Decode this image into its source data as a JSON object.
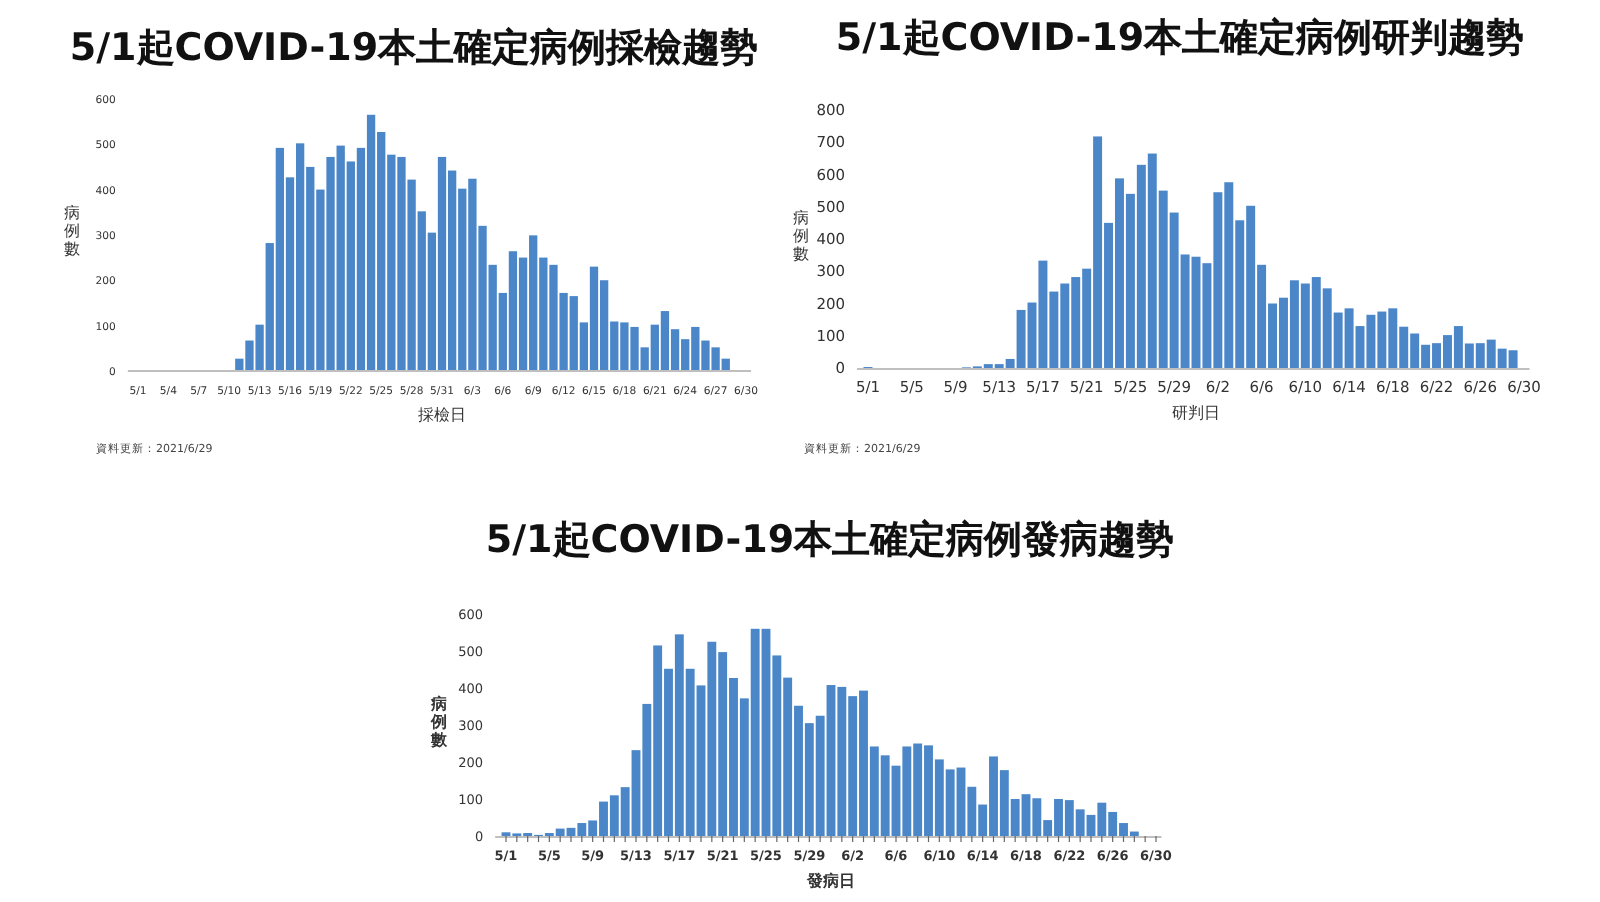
{
  "chart_data": [
    {
      "type": "bar",
      "title": "5/1起COVID-19本土確定病例採檢趨勢",
      "xlabel": "採檢日",
      "ylabel": "病例數",
      "color": "#4a86c8",
      "ylim": [
        0,
        600
      ],
      "yticks": [
        0,
        100,
        200,
        300,
        400,
        500,
        600
      ],
      "annotations": [
        "資料更新：2021/6/29"
      ],
      "categories": [
        "5/1",
        null,
        null,
        "5/4",
        null,
        null,
        "5/7",
        null,
        null,
        "5/10",
        null,
        null,
        "5/13",
        null,
        null,
        "5/16",
        null,
        null,
        "5/19",
        null,
        null,
        "5/22",
        null,
        null,
        "5/25",
        null,
        null,
        "5/28",
        null,
        null,
        "5/31",
        null,
        null,
        "6/3",
        null,
        null,
        "6/6",
        null,
        null,
        "6/9",
        null,
        null,
        "6/12",
        null,
        null,
        "6/15",
        null,
        null,
        "6/18",
        null,
        null,
        "6/21",
        null,
        null,
        "6/24",
        null,
        null,
        "6/27",
        null,
        null,
        "6/30"
      ],
      "values": [
        0,
        0,
        0,
        0,
        0,
        0,
        0,
        0,
        0,
        0,
        25,
        65,
        100,
        280,
        490,
        425,
        500,
        448,
        398,
        470,
        495,
        460,
        490,
        563,
        525,
        475,
        470,
        420,
        350,
        303,
        470,
        440,
        400,
        422,
        318,
        232,
        170,
        262,
        248,
        297,
        248,
        232,
        170,
        163,
        105,
        228,
        198,
        107,
        105,
        95,
        50,
        100,
        130,
        90,
        68,
        95,
        65,
        50,
        25,
        0,
        0
      ]
    },
    {
      "type": "bar",
      "title": "5/1起COVID-19本土確定病例研判趨勢",
      "xlabel": "研判日",
      "ylabel": "病例數",
      "color": "#4a86c8",
      "ylim": [
        0,
        800
      ],
      "yticks": [
        0,
        100,
        200,
        300,
        400,
        500,
        600,
        700,
        800
      ],
      "annotations": [
        "資料更新：2021/6/29"
      ],
      "categories": [
        "5/1",
        null,
        null,
        null,
        "5/5",
        null,
        null,
        null,
        "5/9",
        null,
        null,
        null,
        "5/13",
        null,
        null,
        null,
        "5/17",
        null,
        null,
        null,
        "5/21",
        null,
        null,
        null,
        "5/25",
        null,
        null,
        null,
        "5/29",
        null,
        null,
        null,
        "6/2",
        null,
        null,
        null,
        "6/6",
        null,
        null,
        null,
        "6/10",
        null,
        null,
        null,
        "6/14",
        null,
        null,
        null,
        "6/18",
        null,
        null,
        null,
        "6/22",
        null,
        null,
        null,
        "6/26",
        null,
        null,
        null,
        "6/30"
      ],
      "values": [
        3,
        0,
        0,
        0,
        0,
        0,
        0,
        0,
        0,
        2,
        5,
        12,
        12,
        28,
        180,
        203,
        333,
        237,
        262,
        282,
        308,
        718,
        450,
        588,
        540,
        630,
        665,
        550,
        482,
        352,
        345,
        325,
        545,
        576,
        458,
        503,
        320,
        200,
        218,
        272,
        262,
        282,
        247,
        172,
        185,
        130,
        165,
        175,
        185,
        128,
        107,
        72,
        77,
        102,
        130,
        76,
        77,
        88,
        60,
        55,
        0
      ]
    },
    {
      "type": "bar",
      "title": "5/1起COVID-19本土確定病例發病趨勢",
      "xlabel": "發病日",
      "ylabel": "病例數",
      "color": "#4a86c8",
      "ylim": [
        0,
        600
      ],
      "yticks": [
        0,
        100,
        200,
        300,
        400,
        500,
        600
      ],
      "categories": [
        "5/1",
        null,
        null,
        null,
        "5/5",
        null,
        null,
        null,
        "5/9",
        null,
        null,
        null,
        "5/13",
        null,
        null,
        null,
        "5/17",
        null,
        null,
        null,
        "5/21",
        null,
        null,
        null,
        "5/25",
        null,
        null,
        null,
        "5/29",
        null,
        null,
        null,
        "6/2",
        null,
        null,
        null,
        "6/6",
        null,
        null,
        null,
        "6/10",
        null,
        null,
        null,
        "6/14",
        null,
        null,
        null,
        "6/18",
        null,
        null,
        null,
        "6/22",
        null,
        null,
        null,
        "6/26",
        null,
        null,
        null,
        "6/30"
      ],
      "values": [
        10,
        7,
        8,
        3,
        8,
        20,
        22,
        35,
        42,
        93,
        110,
        132,
        232,
        357,
        515,
        452,
        545,
        452,
        407,
        525,
        497,
        427,
        372,
        560,
        560,
        488,
        428,
        352,
        305,
        325,
        408,
        403,
        378,
        393,
        242,
        218,
        190,
        242,
        250,
        245,
        207,
        180,
        185,
        133,
        85,
        215,
        178,
        100,
        113,
        102,
        43,
        100,
        97,
        72,
        57,
        90,
        65,
        35,
        12,
        0,
        0
      ]
    }
  ]
}
